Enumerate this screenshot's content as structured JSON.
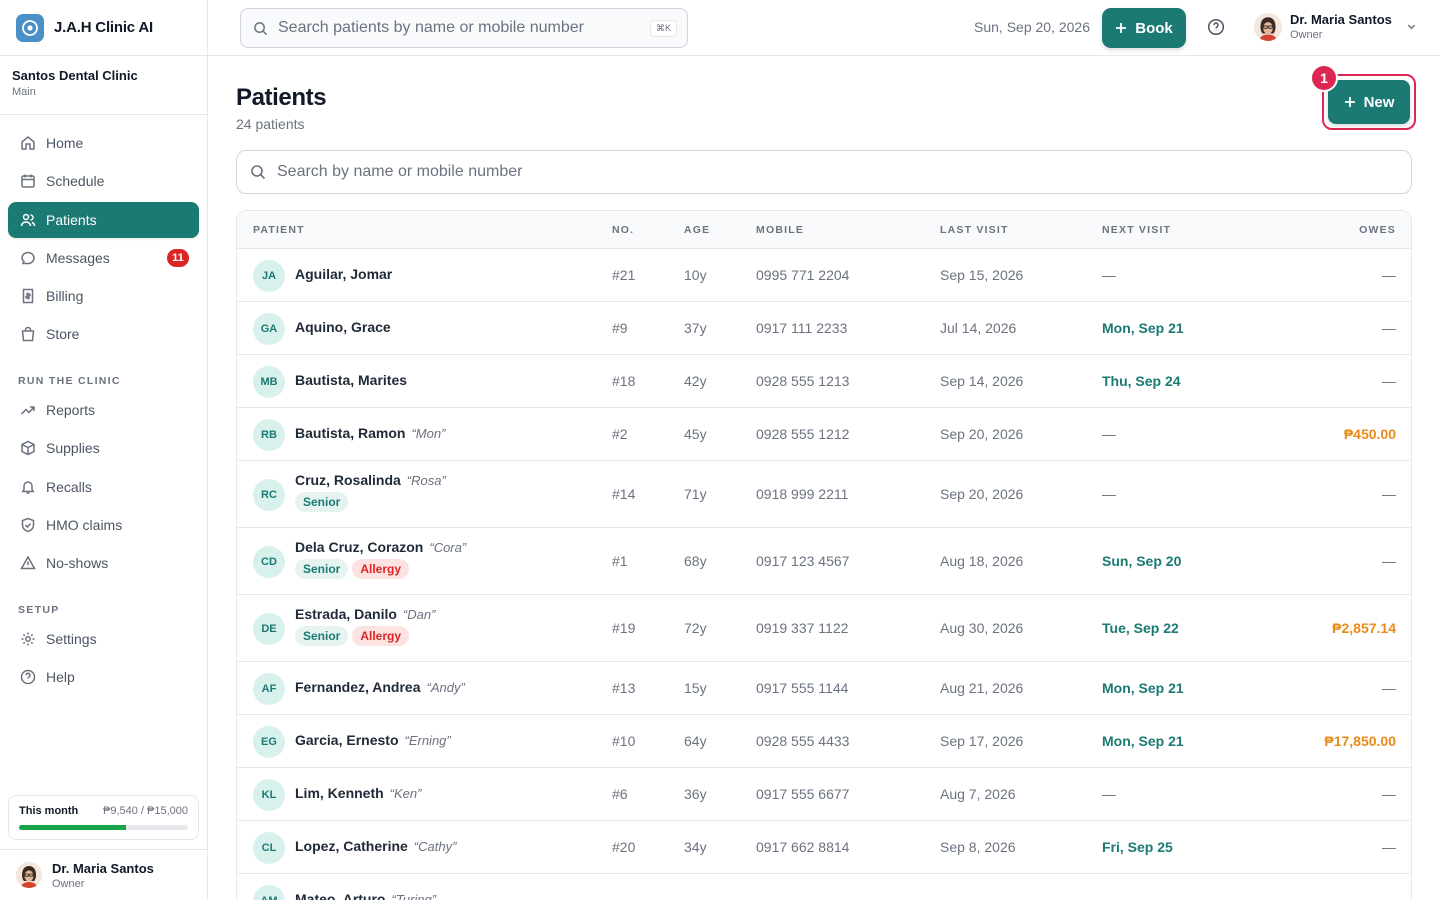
{
  "app": {
    "name": "J.A.H Clinic AI"
  },
  "clinic": {
    "name": "Santos Dental Clinic",
    "branch": "Main"
  },
  "nav": {
    "home": "Home",
    "schedule": "Schedule",
    "patients": "Patients",
    "messages": "Messages",
    "messages_badge": "11",
    "billing": "Billing",
    "store": "Store",
    "section_run": "RUN THE CLINIC",
    "reports": "Reports",
    "supplies": "Supplies",
    "recalls": "Recalls",
    "hmo": "HMO claims",
    "noshows": "No-shows",
    "section_setup": "SETUP",
    "settings": "Settings",
    "help": "Help"
  },
  "month": {
    "label": "This month",
    "value": "₱9,540 / ₱15,000",
    "progress": 0.636
  },
  "user": {
    "name": "Dr. Maria Santos",
    "role": "Owner"
  },
  "topbar": {
    "search_placeholder": "Search patients by name or mobile number",
    "shortcut": "⌘K",
    "date": "Sun, Sep 20, 2026",
    "book_label": "Book"
  },
  "page": {
    "title": "Patients",
    "count": "24 patients",
    "new_label": "New",
    "step": "1",
    "search_placeholder": "Search by name or mobile number"
  },
  "table": {
    "headers": {
      "patient": "PATIENT",
      "no": "NO.",
      "age": "AGE",
      "mobile": "MOBILE",
      "last": "LAST VISIT",
      "next": "NEXT VISIT",
      "owes": "OWES"
    },
    "rows": [
      {
        "initials": "JA",
        "name": "Aguilar, Jomar",
        "nick": "",
        "tags": [],
        "no": "#21",
        "age": "10y",
        "mobile": "0995 771 2204",
        "last": "Sep 15, 2026",
        "next": "—",
        "owes": "—"
      },
      {
        "initials": "GA",
        "name": "Aquino, Grace",
        "nick": "",
        "tags": [],
        "no": "#9",
        "age": "37y",
        "mobile": "0917 111 2233",
        "last": "Jul 14, 2026",
        "next": "Mon, Sep 21",
        "owes": "—"
      },
      {
        "initials": "MB",
        "name": "Bautista, Marites",
        "nick": "",
        "tags": [],
        "no": "#18",
        "age": "42y",
        "mobile": "0928 555 1213",
        "last": "Sep 14, 2026",
        "next": "Thu, Sep 24",
        "owes": "—"
      },
      {
        "initials": "RB",
        "name": "Bautista, Ramon",
        "nick": "“Mon”",
        "tags": [],
        "no": "#2",
        "age": "45y",
        "mobile": "0928 555 1212",
        "last": "Sep 20, 2026",
        "next": "—",
        "owes": "₱450.00"
      },
      {
        "initials": "RC",
        "name": "Cruz, Rosalinda",
        "nick": "“Rosa”",
        "tags": [
          "Senior"
        ],
        "no": "#14",
        "age": "71y",
        "mobile": "0918 999 2211",
        "last": "Sep 20, 2026",
        "next": "—",
        "owes": "—"
      },
      {
        "initials": "CD",
        "name": "Dela Cruz, Corazon",
        "nick": "“Cora”",
        "tags": [
          "Senior",
          "Allergy"
        ],
        "no": "#1",
        "age": "68y",
        "mobile": "0917 123 4567",
        "last": "Aug 18, 2026",
        "next": "Sun, Sep 20",
        "owes": "—"
      },
      {
        "initials": "DE",
        "name": "Estrada, Danilo",
        "nick": "“Dan”",
        "tags": [
          "Senior",
          "Allergy"
        ],
        "no": "#19",
        "age": "72y",
        "mobile": "0919 337 1122",
        "last": "Aug 30, 2026",
        "next": "Tue, Sep 22",
        "owes": "₱2,857.14"
      },
      {
        "initials": "AF",
        "name": "Fernandez, Andrea",
        "nick": "“Andy”",
        "tags": [],
        "no": "#13",
        "age": "15y",
        "mobile": "0917 555 1144",
        "last": "Aug 21, 2026",
        "next": "Mon, Sep 21",
        "owes": "—"
      },
      {
        "initials": "EG",
        "name": "Garcia, Ernesto",
        "nick": "“Erning”",
        "tags": [],
        "no": "#10",
        "age": "64y",
        "mobile": "0928 555 4433",
        "last": "Sep 17, 2026",
        "next": "Mon, Sep 21",
        "owes": "₱17,850.00"
      },
      {
        "initials": "KL",
        "name": "Lim, Kenneth",
        "nick": "“Ken”",
        "tags": [],
        "no": "#6",
        "age": "36y",
        "mobile": "0917 555 6677",
        "last": "Aug 7, 2026",
        "next": "—",
        "owes": "—"
      },
      {
        "initials": "CL",
        "name": "Lopez, Catherine",
        "nick": "“Cathy”",
        "tags": [],
        "no": "#20",
        "age": "34y",
        "mobile": "0917 662 8814",
        "last": "Sep 8, 2026",
        "next": "Fri, Sep 25",
        "owes": "—"
      },
      {
        "initials": "AM",
        "name": "Mateo, Arturo",
        "nick": "“Turing”",
        "tags": [],
        "no": "",
        "age": "",
        "mobile": "",
        "last": "",
        "next": "",
        "owes": ""
      }
    ]
  }
}
